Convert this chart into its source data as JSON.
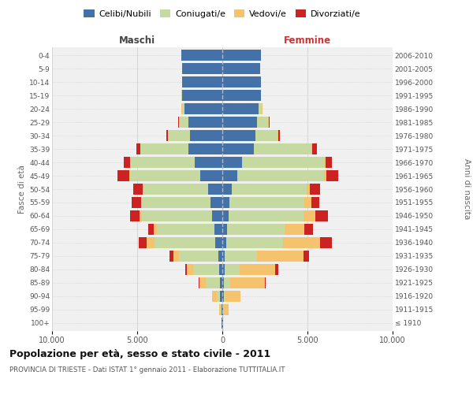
{
  "age_groups": [
    "100+",
    "95-99",
    "90-94",
    "85-89",
    "80-84",
    "75-79",
    "70-74",
    "65-69",
    "60-64",
    "55-59",
    "50-54",
    "45-49",
    "40-44",
    "35-39",
    "30-34",
    "25-29",
    "20-24",
    "15-19",
    "10-14",
    "5-9",
    "0-4"
  ],
  "birth_years": [
    "≤ 1910",
    "1911-1915",
    "1916-1920",
    "1921-1925",
    "1926-1930",
    "1931-1935",
    "1936-1940",
    "1941-1945",
    "1946-1950",
    "1951-1955",
    "1956-1960",
    "1961-1965",
    "1966-1970",
    "1971-1975",
    "1976-1980",
    "1981-1985",
    "1986-1990",
    "1991-1995",
    "1996-2000",
    "2001-2005",
    "2006-2010"
  ],
  "male_celibi": [
    30,
    60,
    120,
    150,
    200,
    250,
    400,
    450,
    600,
    700,
    850,
    1300,
    1600,
    2000,
    1900,
    2000,
    2200,
    2350,
    2350,
    2350,
    2400
  ],
  "male_coniugati": [
    15,
    40,
    200,
    800,
    1500,
    2300,
    3600,
    3400,
    4100,
    4000,
    3800,
    4100,
    3800,
    2800,
    1300,
    550,
    180,
    40,
    0,
    0,
    0
  ],
  "male_vedovi": [
    8,
    70,
    280,
    380,
    380,
    330,
    430,
    190,
    140,
    90,
    45,
    55,
    35,
    18,
    8,
    8,
    8,
    0,
    0,
    0,
    0
  ],
  "male_divorziati": [
    4,
    8,
    18,
    45,
    75,
    240,
    480,
    330,
    580,
    530,
    530,
    680,
    330,
    240,
    75,
    28,
    18,
    0,
    0,
    0,
    0
  ],
  "female_celibi": [
    25,
    40,
    80,
    80,
    120,
    160,
    250,
    280,
    380,
    430,
    570,
    870,
    1150,
    1850,
    1950,
    2050,
    2150,
    2250,
    2250,
    2200,
    2250
  ],
  "female_coniugati": [
    8,
    40,
    120,
    400,
    900,
    1900,
    3300,
    3400,
    4400,
    4400,
    4400,
    5100,
    4800,
    3400,
    1300,
    650,
    180,
    40,
    0,
    0,
    0
  ],
  "female_vedovi": [
    25,
    280,
    850,
    2000,
    2100,
    2700,
    2200,
    1150,
    670,
    380,
    190,
    140,
    95,
    45,
    28,
    18,
    18,
    0,
    0,
    0,
    0
  ],
  "female_divorziati": [
    4,
    8,
    18,
    75,
    190,
    330,
    670,
    480,
    770,
    480,
    580,
    680,
    380,
    280,
    95,
    38,
    18,
    0,
    0,
    0,
    0
  ],
  "colors": {
    "celibi": "#4472a8",
    "coniugati": "#c5d9a0",
    "vedovi": "#f5c26e",
    "divorziati": "#cc2222"
  },
  "title": "Popolazione per età, sesso e stato civile - 2011",
  "subtitle": "PROVINCIA DI TRIESTE - Dati ISTAT 1° gennaio 2011 - Elaborazione TUTTITALIA.IT",
  "xlabel_left": "Maschi",
  "xlabel_right": "Femmine",
  "ylabel_left": "Fasce di età",
  "ylabel_right": "Anni di nascita",
  "xlim": 10000,
  "legend_labels": [
    "Celibi/Nubili",
    "Coniugati/e",
    "Vedovi/e",
    "Divorziati/e"
  ],
  "background_color": "#ffffff",
  "plot_bg": "#f0f0f0",
  "grid_color": "#cccccc"
}
